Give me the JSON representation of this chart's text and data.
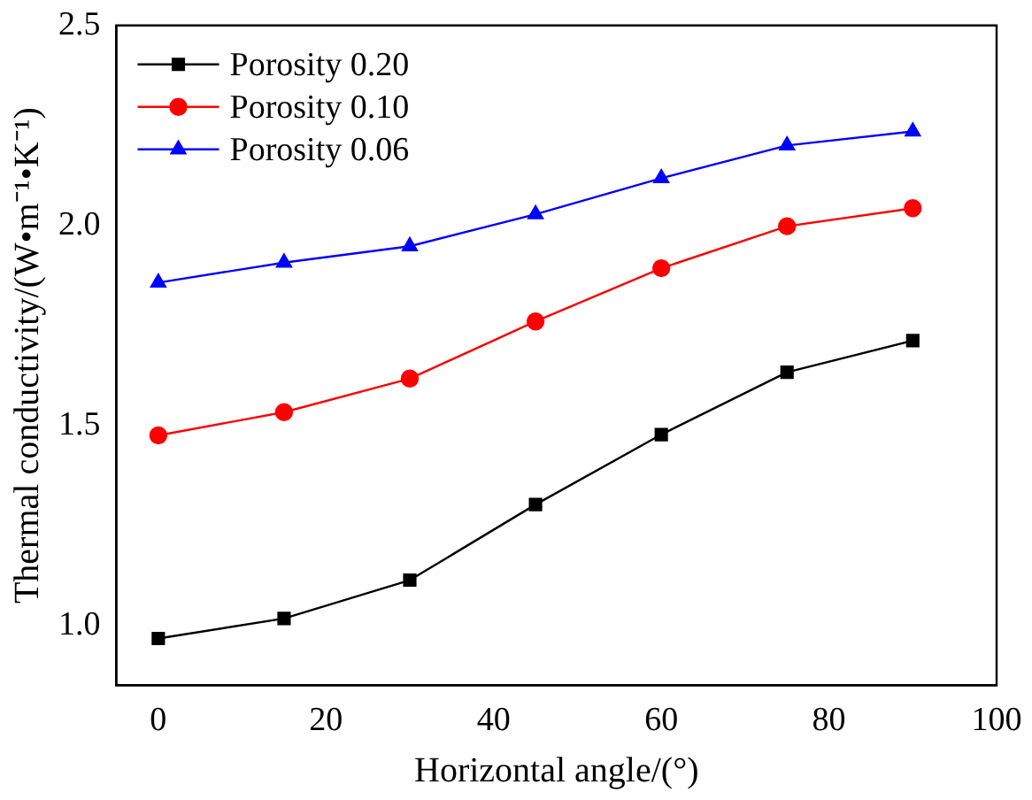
{
  "chart_data": {
    "type": "line",
    "xlabel": "Horizontal angle/(°)",
    "ylabel": "Thermal conductivity/(W•m⁻¹•K⁻¹)",
    "x": [
      0,
      15,
      30,
      45,
      60,
      75,
      90
    ],
    "series": [
      {
        "name": "Porosity 0.20",
        "color": "#000000",
        "marker": "square",
        "values": [
          0.967,
          1.017,
          1.113,
          1.302,
          1.477,
          1.633,
          1.712
        ]
      },
      {
        "name": "Porosity 0.10",
        "color": "#ff0000",
        "marker": "circle",
        "values": [
          1.475,
          1.533,
          1.617,
          1.76,
          1.893,
          1.998,
          2.043
        ]
      },
      {
        "name": "Porosity 0.06",
        "color": "#0000ff",
        "marker": "triangle",
        "values": [
          1.857,
          1.907,
          1.948,
          2.028,
          2.118,
          2.2,
          2.235
        ]
      }
    ],
    "xlim": [
      -5,
      100
    ],
    "xticks": [
      0,
      20,
      40,
      60,
      80,
      100
    ],
    "ylim": [
      0.85,
      2.5
    ],
    "yticks": [
      {
        "value": 1,
        "label": "1.0"
      },
      {
        "value": 1.5,
        "label": "1.5"
      },
      {
        "value": 2,
        "label": "2.0"
      },
      {
        "value": 2.5,
        "label": "2.5"
      }
    ],
    "grid": false,
    "legend": "top left"
  }
}
